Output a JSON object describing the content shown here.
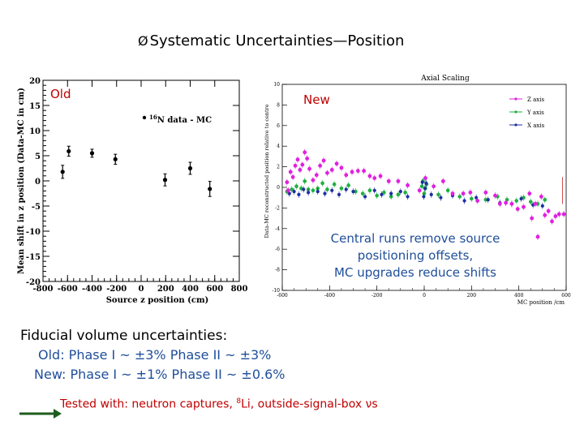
{
  "slide_title": {
    "bullet": "Ø",
    "text": "Systematic Uncertainties—Position"
  },
  "chart_data": [
    {
      "type": "scatter",
      "label_on_slide": "Old",
      "xlabel": "Source z position (cm)",
      "ylabel": "Mean shift in z position (Data-MC in cm)",
      "xlim": [
        -800,
        800
      ],
      "ylim": [
        -20,
        20
      ],
      "xticks": [
        "-800",
        "-600",
        "-400",
        "-200",
        "0",
        "200",
        "400",
        "600",
        "800"
      ],
      "yticks": [
        "20",
        "15",
        "10",
        "5",
        "0",
        "-5",
        "-10",
        "-15",
        "-20"
      ],
      "series": [
        {
          "name": "16N data - MC",
          "color": "#000000",
          "points": [
            {
              "x": -640,
              "y": 1.8,
              "err": 1.3
            },
            {
              "x": -590,
              "y": 5.9,
              "err": 1.0
            },
            {
              "x": -400,
              "y": 5.5,
              "err": 0.8
            },
            {
              "x": -210,
              "y": 4.3,
              "err": 1.0
            },
            {
              "x": 195,
              "y": 0.2,
              "err": 1.2
            },
            {
              "x": 400,
              "y": 2.5,
              "err": 1.2
            },
            {
              "x": 560,
              "y": -1.6,
              "err": 1.5
            }
          ]
        }
      ],
      "legend_placement": "top-right"
    },
    {
      "type": "scatter",
      "title": "Axial Scaling",
      "label_on_slide": "New",
      "xlabel": "MC position /cm",
      "ylabel": "Data-MC reconstructed position relative to centre",
      "xlim": [
        -600,
        600
      ],
      "ylim": [
        -10,
        10
      ],
      "xticks": [
        "-600",
        "-400",
        "-200",
        "0",
        "200",
        "400",
        "600"
      ],
      "yticks": [
        "10",
        "8",
        "6",
        "4",
        "2",
        "0",
        "-2",
        "-4",
        "-6",
        "-8",
        "-10"
      ],
      "series": [
        {
          "name": "Z axis",
          "color": "#e020e0",
          "points": [
            [
              -580,
              0.5
            ],
            [
              -575,
              -0.3
            ],
            [
              -565,
              1.5
            ],
            [
              -555,
              1.0
            ],
            [
              -545,
              2.1
            ],
            [
              -535,
              2.7
            ],
            [
              -525,
              1.7
            ],
            [
              -515,
              2.2
            ],
            [
              -505,
              3.4
            ],
            [
              -495,
              2.8
            ],
            [
              -485,
              1.8
            ],
            [
              -470,
              0.7
            ],
            [
              -455,
              1.2
            ],
            [
              -440,
              2.1
            ],
            [
              -425,
              2.6
            ],
            [
              -410,
              1.4
            ],
            [
              -390,
              1.7
            ],
            [
              -370,
              2.3
            ],
            [
              -350,
              1.9
            ],
            [
              -330,
              1.2
            ],
            [
              -305,
              1.5
            ],
            [
              -280,
              1.6
            ],
            [
              -255,
              1.6
            ],
            [
              -230,
              1.1
            ],
            [
              -210,
              0.9
            ],
            [
              -185,
              1.1
            ],
            [
              -150,
              0.6
            ],
            [
              -110,
              0.6
            ],
            [
              -70,
              0.2
            ],
            [
              -20,
              -0.3
            ],
            [
              5,
              0.9
            ],
            [
              40,
              0.1
            ],
            [
              80,
              0.6
            ],
            [
              120,
              -0.6
            ],
            [
              165,
              -0.6
            ],
            [
              195,
              -0.5
            ],
            [
              225,
              -1.3
            ],
            [
              260,
              -0.5
            ],
            [
              300,
              -0.8
            ],
            [
              320,
              -1.6
            ],
            [
              345,
              -1.5
            ],
            [
              370,
              -1.6
            ],
            [
              395,
              -2.1
            ],
            [
              420,
              -1.9
            ],
            [
              445,
              -0.6
            ],
            [
              455,
              -3.0
            ],
            [
              470,
              -1.6
            ],
            [
              480,
              -4.8
            ],
            [
              495,
              -0.9
            ],
            [
              510,
              -2.7
            ],
            [
              525,
              -2.3
            ],
            [
              540,
              -3.3
            ],
            [
              555,
              -2.8
            ],
            [
              570,
              -2.6
            ],
            [
              590,
              -2.6
            ]
          ]
        },
        {
          "name": "Y axis",
          "color": "#20b040",
          "points": [
            [
              -580,
              -0.4
            ],
            [
              -560,
              -0.2
            ],
            [
              -540,
              0.1
            ],
            [
              -520,
              -0.1
            ],
            [
              -505,
              0.6
            ],
            [
              -490,
              -0.2
            ],
            [
              -470,
              -0.3
            ],
            [
              -450,
              -0.1
            ],
            [
              -430,
              0.4
            ],
            [
              -410,
              -0.2
            ],
            [
              -380,
              0.3
            ],
            [
              -350,
              -0.1
            ],
            [
              -320,
              0.2
            ],
            [
              -290,
              -0.4
            ],
            [
              -260,
              -0.6
            ],
            [
              -230,
              -0.3
            ],
            [
              -200,
              -0.8
            ],
            [
              -170,
              -0.5
            ],
            [
              -140,
              -0.9
            ],
            [
              -110,
              -0.7
            ],
            [
              -80,
              -0.5
            ],
            [
              -10,
              0.1
            ],
            [
              -5,
              0.6
            ],
            [
              0,
              -0.6
            ],
            [
              5,
              -0.1
            ],
            [
              10,
              0.3
            ],
            [
              60,
              -0.7
            ],
            [
              100,
              -0.3
            ],
            [
              150,
              -0.9
            ],
            [
              200,
              -1.1
            ],
            [
              260,
              -1.2
            ],
            [
              310,
              -0.9
            ],
            [
              350,
              -1.2
            ],
            [
              390,
              -1.3
            ],
            [
              420,
              -1.0
            ],
            [
              450,
              -1.4
            ],
            [
              480,
              -1.6
            ],
            [
              510,
              -1.2
            ]
          ]
        },
        {
          "name": "X axis",
          "color": "#1c2fa0",
          "points": [
            [
              -570,
              -0.6
            ],
            [
              -550,
              -0.4
            ],
            [
              -530,
              -0.7
            ],
            [
              -510,
              -0.2
            ],
            [
              -490,
              -0.5
            ],
            [
              -450,
              -0.4
            ],
            [
              -420,
              -0.6
            ],
            [
              -390,
              -0.3
            ],
            [
              -360,
              -0.7
            ],
            [
              -330,
              -0.2
            ],
            [
              -300,
              -0.4
            ],
            [
              -250,
              -0.9
            ],
            [
              -210,
              -0.3
            ],
            [
              -180,
              -0.7
            ],
            [
              -140,
              -0.6
            ],
            [
              -100,
              -0.4
            ],
            [
              -70,
              -0.9
            ],
            [
              -8,
              0.5
            ],
            [
              -2,
              -0.9
            ],
            [
              3,
              -0.1
            ],
            [
              8,
              0.4
            ],
            [
              30,
              -0.7
            ],
            [
              70,
              -1.0
            ],
            [
              120,
              -0.8
            ],
            [
              170,
              -1.3
            ],
            [
              220,
              -1.0
            ],
            [
              270,
              -1.2
            ],
            [
              320,
              -1.5
            ],
            [
              370,
              -1.6
            ],
            [
              410,
              -1.1
            ],
            [
              460,
              -1.7
            ],
            [
              500,
              -1.8
            ]
          ]
        }
      ],
      "legend_placement": "top-right"
    }
  ],
  "annotation": {
    "lines": [
      "Central runs remove source",
      "positioning offsets,",
      "MC upgrades reduce shifts"
    ]
  },
  "fiducial": {
    "heading": "Fiducial volume uncertainties:",
    "old_tag": "Old:",
    "old_values": " Phase I ~ ±3%  Phase II ~ ±3%",
    "new_tag": "New:",
    "new_values": " Phase I ~ ±1%  Phase II ~ ±0.6%"
  },
  "tested": {
    "prefix": "Tested with: neutron captures, ",
    "sup": "8",
    "suffix": "Li, outside-signal-box νs"
  },
  "colors": {
    "accent_red": "#c00000",
    "accent_blue": "#1f4e9a",
    "arrow_green": "#1e5c1e"
  }
}
